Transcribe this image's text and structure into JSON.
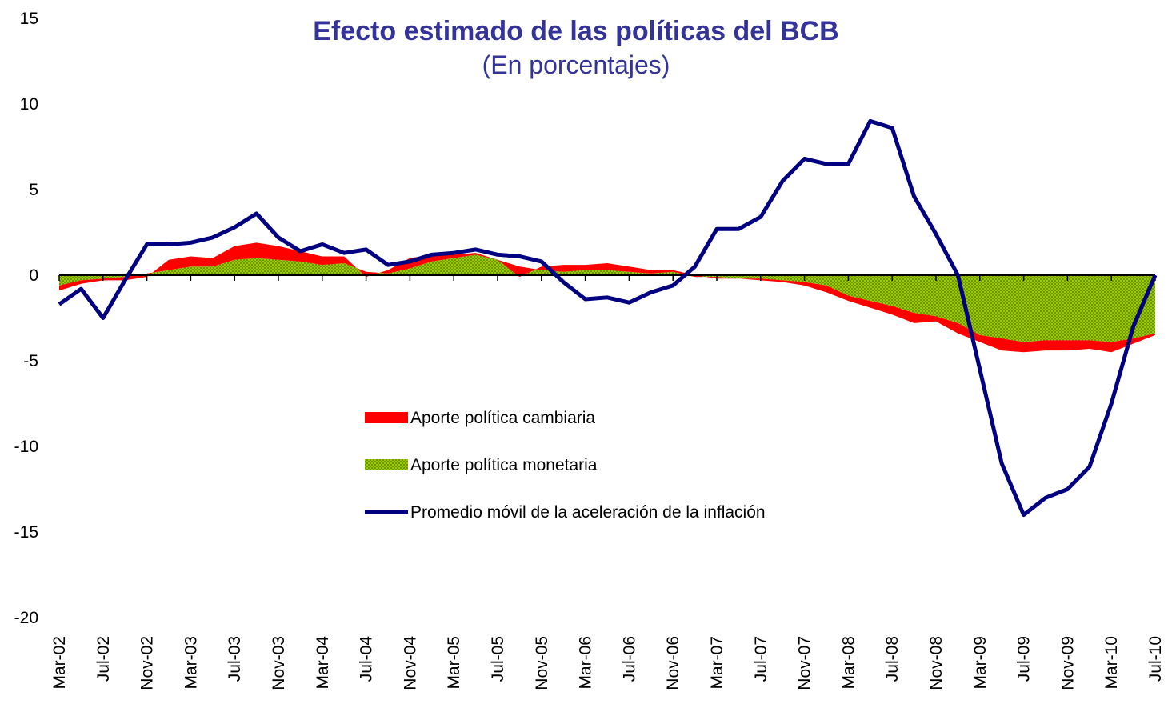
{
  "chart_data": {
    "type": "stacked-area-line",
    "title": "Efecto estimado de las políticas del BCB",
    "subtitle": "(En porcentajes)",
    "categories": [
      "Mar-02",
      null,
      "Jul-02",
      null,
      "Nov-02",
      null,
      "Mar-03",
      null,
      "Jul-03",
      null,
      "Nov-03",
      null,
      "Mar-04",
      null,
      "Jul-04",
      null,
      "Nov-04",
      null,
      "Mar-05",
      null,
      "Jul-05",
      null,
      "Nov-05",
      null,
      "Mar-06",
      null,
      "Jul-06",
      null,
      "Nov-06",
      null,
      "Mar-07",
      null,
      "Jul-07",
      null,
      "Nov-07",
      null,
      "Mar-08",
      null,
      "Jul-08",
      null,
      "Nov-08",
      null,
      "Mar-09",
      null,
      "Jul-09",
      null,
      "Nov-09",
      null,
      "Mar-10",
      null,
      "Jul-10"
    ],
    "series": [
      {
        "name": "Aporte política cambiaria",
        "color": "#ff0000",
        "kind": "area",
        "values": [
          -0.3,
          -0.2,
          -0.1,
          -0.2,
          -0.2,
          0.6,
          0.6,
          0.5,
          0.8,
          0.9,
          0.8,
          0.6,
          0.5,
          0.4,
          -0.3,
          0.2,
          0.6,
          0.4,
          0.2,
          0.1,
          0.0,
          -0.6,
          0.2,
          0.4,
          0.3,
          0.4,
          0.3,
          0.2,
          0.1,
          0.1,
          -0.1,
          0.0,
          -0.1,
          -0.1,
          -0.2,
          -0.4,
          -0.3,
          -0.4,
          -0.5,
          -0.6,
          -0.3,
          -0.6,
          -0.4,
          -0.7,
          -0.6,
          -0.6,
          -0.6,
          -0.5,
          -0.6,
          -0.3,
          -0.1
        ]
      },
      {
        "name": "Aporte política monetaria",
        "color": "#99cc00",
        "kind": "area",
        "values": [
          -0.6,
          -0.3,
          -0.2,
          -0.1,
          0.1,
          0.3,
          0.5,
          0.5,
          0.9,
          1.0,
          0.9,
          0.8,
          0.6,
          0.7,
          0.2,
          0.1,
          0.4,
          0.8,
          1.0,
          1.2,
          0.9,
          0.5,
          0.3,
          0.2,
          0.3,
          0.3,
          0.2,
          0.1,
          0.2,
          -0.1,
          -0.1,
          -0.2,
          -0.2,
          -0.3,
          -0.4,
          -0.6,
          -1.2,
          -1.5,
          -1.8,
          -2.2,
          -2.4,
          -2.8,
          -3.5,
          -3.7,
          -3.9,
          -3.8,
          -3.8,
          -3.8,
          -3.9,
          -3.7,
          -3.4
        ]
      },
      {
        "name": "Promedio móvil de la aceleración de la inflación",
        "color": "#000080",
        "kind": "line",
        "values": [
          -1.7,
          -0.8,
          -2.5,
          -0.3,
          1.8,
          1.8,
          1.9,
          2.2,
          2.8,
          3.6,
          2.2,
          1.4,
          1.8,
          1.3,
          1.5,
          0.6,
          0.8,
          1.2,
          1.3,
          1.5,
          1.2,
          1.1,
          0.8,
          -0.4,
          -1.4,
          -1.3,
          -1.6,
          -1.0,
          -0.6,
          0.5,
          2.7,
          2.7,
          3.4,
          5.5,
          6.8,
          6.5,
          6.5,
          9.0,
          8.6,
          4.6,
          2.4,
          0.0,
          -5.5,
          -11.0,
          -14.0,
          -13.0,
          -12.5,
          -11.2,
          -7.5,
          -3.0,
          0.0
        ]
      }
    ],
    "ylim": [
      -20,
      15
    ],
    "yticks": [
      -20,
      -15,
      -10,
      -5,
      0,
      5,
      10,
      15
    ],
    "grid": false
  }
}
